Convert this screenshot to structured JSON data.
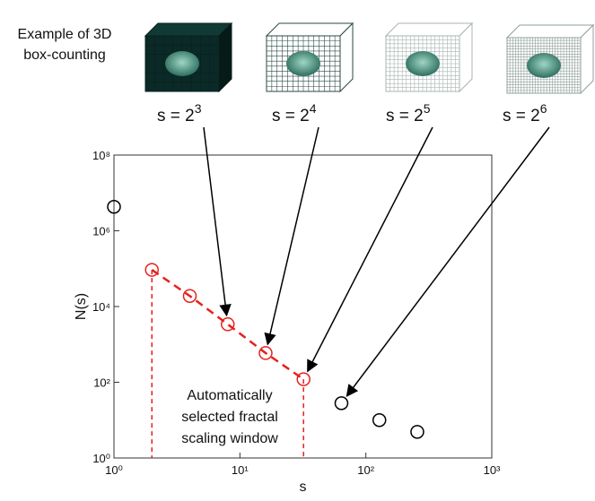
{
  "chart_data": {
    "type": "scatter",
    "caption": [
      "Example of 3D",
      "box-counting"
    ],
    "xlabel": "s",
    "ylabel": "N(s)",
    "xscale": "log",
    "yscale": "log",
    "xlim": [
      1,
      1000
    ],
    "ylim": [
      1,
      100000000
    ],
    "xticks": [
      {
        "value": 1,
        "label": "10⁰"
      },
      {
        "value": 10,
        "label": "10¹"
      },
      {
        "value": 100,
        "label": "10²"
      },
      {
        "value": 1000,
        "label": "10³"
      }
    ],
    "yticks": [
      {
        "value": 1,
        "label": "10⁰"
      },
      {
        "value": 100,
        "label": "10²"
      },
      {
        "value": 10000,
        "label": "10⁴"
      },
      {
        "value": 1000000,
        "label": "10⁶"
      },
      {
        "value": 100000000,
        "label": "10⁸"
      }
    ],
    "series": [
      {
        "color": "#000000",
        "x": [
          1,
          64,
          128,
          256
        ],
        "values": [
          4300000,
          28,
          10,
          4.9
        ]
      },
      {
        "color": "#e8201c",
        "x": [
          2,
          4,
          8,
          16,
          32
        ],
        "values": [
          93000,
          19000,
          3400,
          590,
          120
        ],
        "fit_line": true
      }
    ],
    "window_label": [
      "Automatically",
      "selected fractal",
      "scaling window"
    ],
    "box_labels": [
      {
        "text": "s = 2",
        "sup": "3"
      },
      {
        "text": "s = 2",
        "sup": "4"
      },
      {
        "text": "s = 2",
        "sup": "5"
      },
      {
        "text": "s = 2",
        "sup": "6"
      }
    ]
  }
}
